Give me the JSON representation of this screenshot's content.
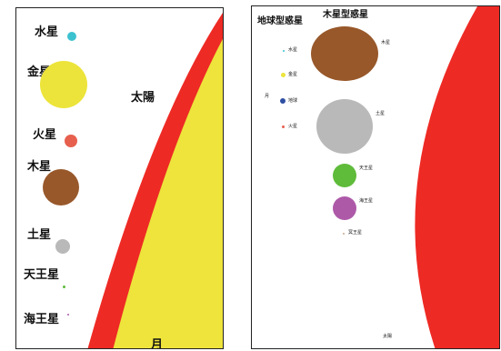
{
  "left_panel": {
    "sun_label": "太陽",
    "moon_label": "月",
    "sun_colors": {
      "outer": "#ee2a24",
      "inner": "#eee43c"
    },
    "planets": [
      {
        "label": "水星",
        "color": "#3cc1cf"
      },
      {
        "label": "金星",
        "color": "#ece43a"
      },
      {
        "label": "火星",
        "color": "#e7604e"
      },
      {
        "label": "木星",
        "color": "#98582a"
      },
      {
        "label": "土星",
        "color": "#b9b9b9"
      },
      {
        "label": "天王星",
        "color": "#5fbb3a"
      },
      {
        "label": "海王星",
        "color": "#ad59a8"
      }
    ]
  },
  "right_panel": {
    "group_terrestrial": "地球型惑星",
    "group_jovian": "木星型惑星",
    "sun_label": "太陽",
    "moon_label": "月",
    "sun_color": "#ee2a24",
    "terrestrial": [
      {
        "label": "水星",
        "color": "#3cc1cf"
      },
      {
        "label": "金星",
        "color": "#ece43a"
      },
      {
        "label": "地球",
        "color": "#2e4fa3"
      },
      {
        "label": "火星",
        "color": "#e7604e"
      }
    ],
    "jovian": [
      {
        "label": "木星",
        "color": "#98582a"
      },
      {
        "label": "土星",
        "color": "#b9b9b9"
      },
      {
        "label": "天王星",
        "color": "#5fbb3a"
      },
      {
        "label": "海王星",
        "color": "#ad59a8"
      },
      {
        "label": "冥王星",
        "color": "#c9a98a"
      }
    ]
  }
}
